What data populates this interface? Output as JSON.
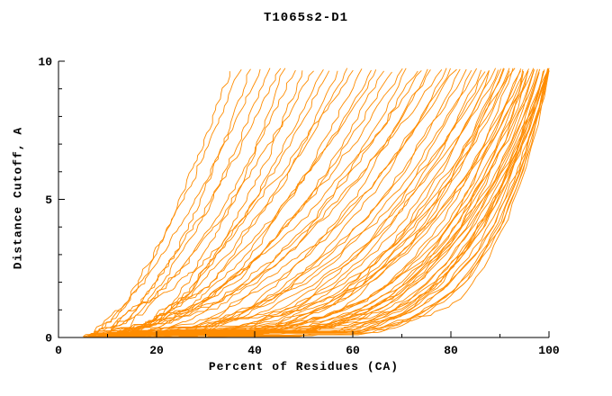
{
  "chart_data": {
    "type": "line",
    "title": "T1065s2-D1",
    "xlabel": "Percent of Residues (CA)",
    "ylabel": "Distance Cutoff, A",
    "xlim": [
      0,
      100
    ],
    "ylim": [
      0,
      10
    ],
    "xticks": [
      0,
      20,
      40,
      60,
      80,
      100
    ],
    "yticks": [
      0,
      5,
      10
    ],
    "x_minor_step": 10,
    "y_minor_step": 1,
    "grid": false,
    "legend": "none",
    "line_color": "#ff8c00",
    "axis_color": "#000000",
    "curve_top": 9.7,
    "seed": 42,
    "curves_note": "Each curve is one structure model: [start_percent, percent_at_top_cutoff, shape_exponent]; y = curve_top * t^exponent as percent goes start->end",
    "curves": [
      [
        5,
        35,
        1.6
      ],
      [
        6,
        37,
        1.4
      ],
      [
        7,
        39,
        1.8
      ],
      [
        5,
        41,
        1.5
      ],
      [
        8,
        43,
        1.7
      ],
      [
        6,
        45,
        1.5
      ],
      [
        9,
        46,
        2.0
      ],
      [
        7,
        48,
        1.6
      ],
      [
        10,
        50,
        1.9
      ],
      [
        6,
        52,
        1.5
      ],
      [
        8,
        54,
        1.8
      ],
      [
        11,
        55,
        1.6
      ],
      [
        7,
        57,
        2.1
      ],
      [
        9,
        59,
        1.7
      ],
      [
        6,
        60,
        1.5
      ],
      [
        10,
        62,
        2.0
      ],
      [
        8,
        64,
        1.8
      ],
      [
        12,
        65,
        1.6
      ],
      [
        7,
        66,
        2.2
      ],
      [
        9,
        68,
        1.9
      ],
      [
        11,
        70,
        1.7
      ],
      [
        8,
        71,
        2.3
      ],
      [
        10,
        73,
        2.0
      ],
      [
        6,
        74,
        1.8
      ],
      [
        12,
        75,
        2.4
      ],
      [
        9,
        76,
        2.1
      ],
      [
        7,
        78,
        1.9
      ],
      [
        11,
        79,
        2.5
      ],
      [
        8,
        80,
        2.2
      ],
      [
        10,
        81,
        2.0
      ],
      [
        6,
        82,
        2.8
      ],
      [
        9,
        83,
        2.4
      ],
      [
        12,
        84,
        3.0
      ],
      [
        7,
        85,
        2.6
      ],
      [
        10,
        86,
        3.2
      ],
      [
        8,
        87,
        2.8
      ],
      [
        11,
        88,
        3.5
      ],
      [
        6,
        88,
        2.5
      ],
      [
        9,
        89,
        3.0
      ],
      [
        12,
        90,
        3.8
      ],
      [
        7,
        90,
        2.7
      ],
      [
        10,
        91,
        3.3
      ],
      [
        8,
        91,
        4.0
      ],
      [
        11,
        92,
        2.9
      ],
      [
        6,
        92,
        3.5
      ],
      [
        9,
        93,
        4.2
      ],
      [
        12,
        93,
        3.0
      ],
      [
        7,
        94,
        3.6
      ],
      [
        10,
        94,
        4.5
      ],
      [
        8,
        95,
        3.2
      ],
      [
        11,
        95,
        4.0
      ],
      [
        6,
        95,
        5.0
      ],
      [
        9,
        96,
        3.4
      ],
      [
        12,
        96,
        4.4
      ],
      [
        7,
        96,
        5.2
      ],
      [
        10,
        97,
        3.8
      ],
      [
        8,
        97,
        4.8
      ],
      [
        11,
        97,
        5.5
      ],
      [
        6,
        98,
        4.0
      ],
      [
        9,
        98,
        5.0
      ],
      [
        12,
        98,
        6.0
      ],
      [
        7,
        98,
        4.5
      ],
      [
        10,
        99,
        5.5
      ],
      [
        8,
        99,
        6.5
      ],
      [
        11,
        99,
        4.8
      ],
      [
        6,
        99,
        5.8
      ],
      [
        9,
        100,
        5.0
      ],
      [
        12,
        100,
        6.8
      ],
      [
        7,
        100,
        4.2
      ],
      [
        10,
        100,
        7.5
      ],
      [
        8,
        100,
        5.5
      ],
      [
        11,
        100,
        6.2
      ],
      [
        6,
        100,
        8.0
      ],
      [
        9,
        100,
        7.0
      ],
      [
        13,
        100,
        5.2
      ],
      [
        14,
        100,
        6.0
      ],
      [
        5,
        100,
        4.6
      ],
      [
        15,
        100,
        7.8
      ]
    ]
  }
}
